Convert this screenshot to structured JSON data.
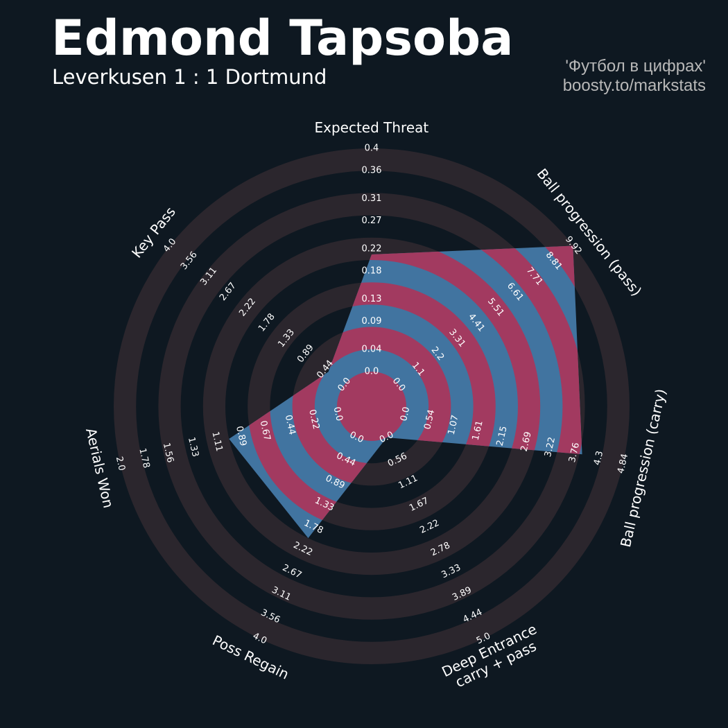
{
  "chart_data": {
    "type": "radar",
    "title": "Edmond Tapsoba",
    "subtitle": "Leverkusen 1 : 1 Dortmund",
    "credits": [
      "'Футбол в цифрах'",
      "boosty.to/markstats"
    ],
    "color": "#4174a0",
    "highlight_color": "#a23a60",
    "ring_color": "#2b262d",
    "axes": [
      {
        "name": "Expected Threat",
        "lim": [
          0,
          0.4
        ],
        "ticks": [
          {
            "value": 0,
            "label": "0.0"
          },
          0.04,
          0.09,
          0.13,
          0.18,
          0.22,
          0.27,
          0.31,
          0.36,
          0.4
        ]
      },
      {
        "name": "Ball progression (pass)",
        "lim": [
          0,
          9.92
        ],
        "ticks": [
          {
            "value": 0,
            "label": "0.0"
          },
          1.1,
          2.2,
          3.31,
          4.41,
          5.51,
          6.61,
          7.71,
          8.81,
          9.92
        ]
      },
      {
        "name": "Ball progression (carry)",
        "lim": [
          0,
          4.84
        ],
        "ticks": [
          {
            "value": 0,
            "label": "0.0"
          },
          0.54,
          1.07,
          1.61,
          2.15,
          2.69,
          3.22,
          3.76,
          4.3,
          4.84
        ]
      },
      {
        "name": "Deep Entrance\ncarry + pass",
        "lim": [
          0,
          5
        ],
        "ticks": [
          {
            "value": 0,
            "label": "0.0"
          },
          0.56,
          1.11,
          1.67,
          2.22,
          2.78,
          3.33,
          3.89,
          4.44,
          {
            "value": 5,
            "label": "5.0"
          }
        ]
      },
      {
        "name": "Poss Regain",
        "lim": [
          0,
          4
        ],
        "ticks": [
          {
            "value": 0,
            "label": "0.0"
          },
          0.44,
          0.89,
          1.33,
          1.78,
          2.22,
          2.67,
          3.11,
          3.56,
          {
            "value": 4,
            "label": "4.0"
          }
        ]
      },
      {
        "name": "Aerials Won",
        "lim": [
          0,
          2
        ],
        "ticks": [
          {
            "value": 0,
            "label": "0.0"
          },
          0.22,
          0.44,
          0.67,
          0.89,
          1.11,
          1.33,
          1.56,
          1.78,
          {
            "value": 2,
            "label": "2.0"
          }
        ]
      },
      {
        "name": "Key Pass",
        "lim": [
          0,
          4
        ],
        "ticks": [
          {
            "value": 0,
            "label": "0.0"
          },
          0.44,
          0.89,
          1.33,
          1.78,
          2.22,
          2.67,
          3.11,
          3.56,
          {
            "value": 4,
            "label": "4.0"
          }
        ]
      }
    ],
    "values": [
      0.21,
      9.9,
      3.93,
      0,
      2.0,
      1.0,
      0.37
    ]
  }
}
